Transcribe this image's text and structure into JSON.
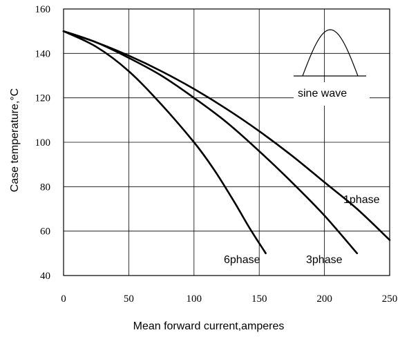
{
  "chart_data": {
    "type": "line",
    "title": "",
    "xlabel": "Mean forward current,amperes",
    "ylabel": "Case temperature,°C",
    "xlim": [
      0,
      250
    ],
    "ylim": [
      40,
      160
    ],
    "x_ticks": [
      0,
      50,
      100,
      150,
      200,
      250
    ],
    "y_ticks": [
      40,
      60,
      80,
      100,
      120,
      140,
      160
    ],
    "grid": true,
    "inset": {
      "label": "sine wave",
      "shape": "half-sine pulse"
    },
    "series": [
      {
        "name": "1phase",
        "x": [
          0,
          25,
          50,
          75,
          100,
          125,
          150,
          175,
          200,
          225,
          250
        ],
        "y": [
          150,
          145,
          139,
          132,
          124,
          115,
          105,
          94,
          82,
          70,
          56
        ]
      },
      {
        "name": "3phase",
        "x": [
          0,
          25,
          50,
          75,
          100,
          125,
          150,
          175,
          200,
          225
        ],
        "y": [
          150,
          145,
          138,
          130,
          120,
          109,
          96,
          82,
          67,
          50
        ]
      },
      {
        "name": "6phase",
        "x": [
          0,
          25,
          50,
          75,
          100,
          115,
          130,
          143,
          155
        ],
        "y": [
          150,
          143,
          132,
          117,
          100,
          88,
          74,
          61,
          50
        ]
      }
    ]
  }
}
